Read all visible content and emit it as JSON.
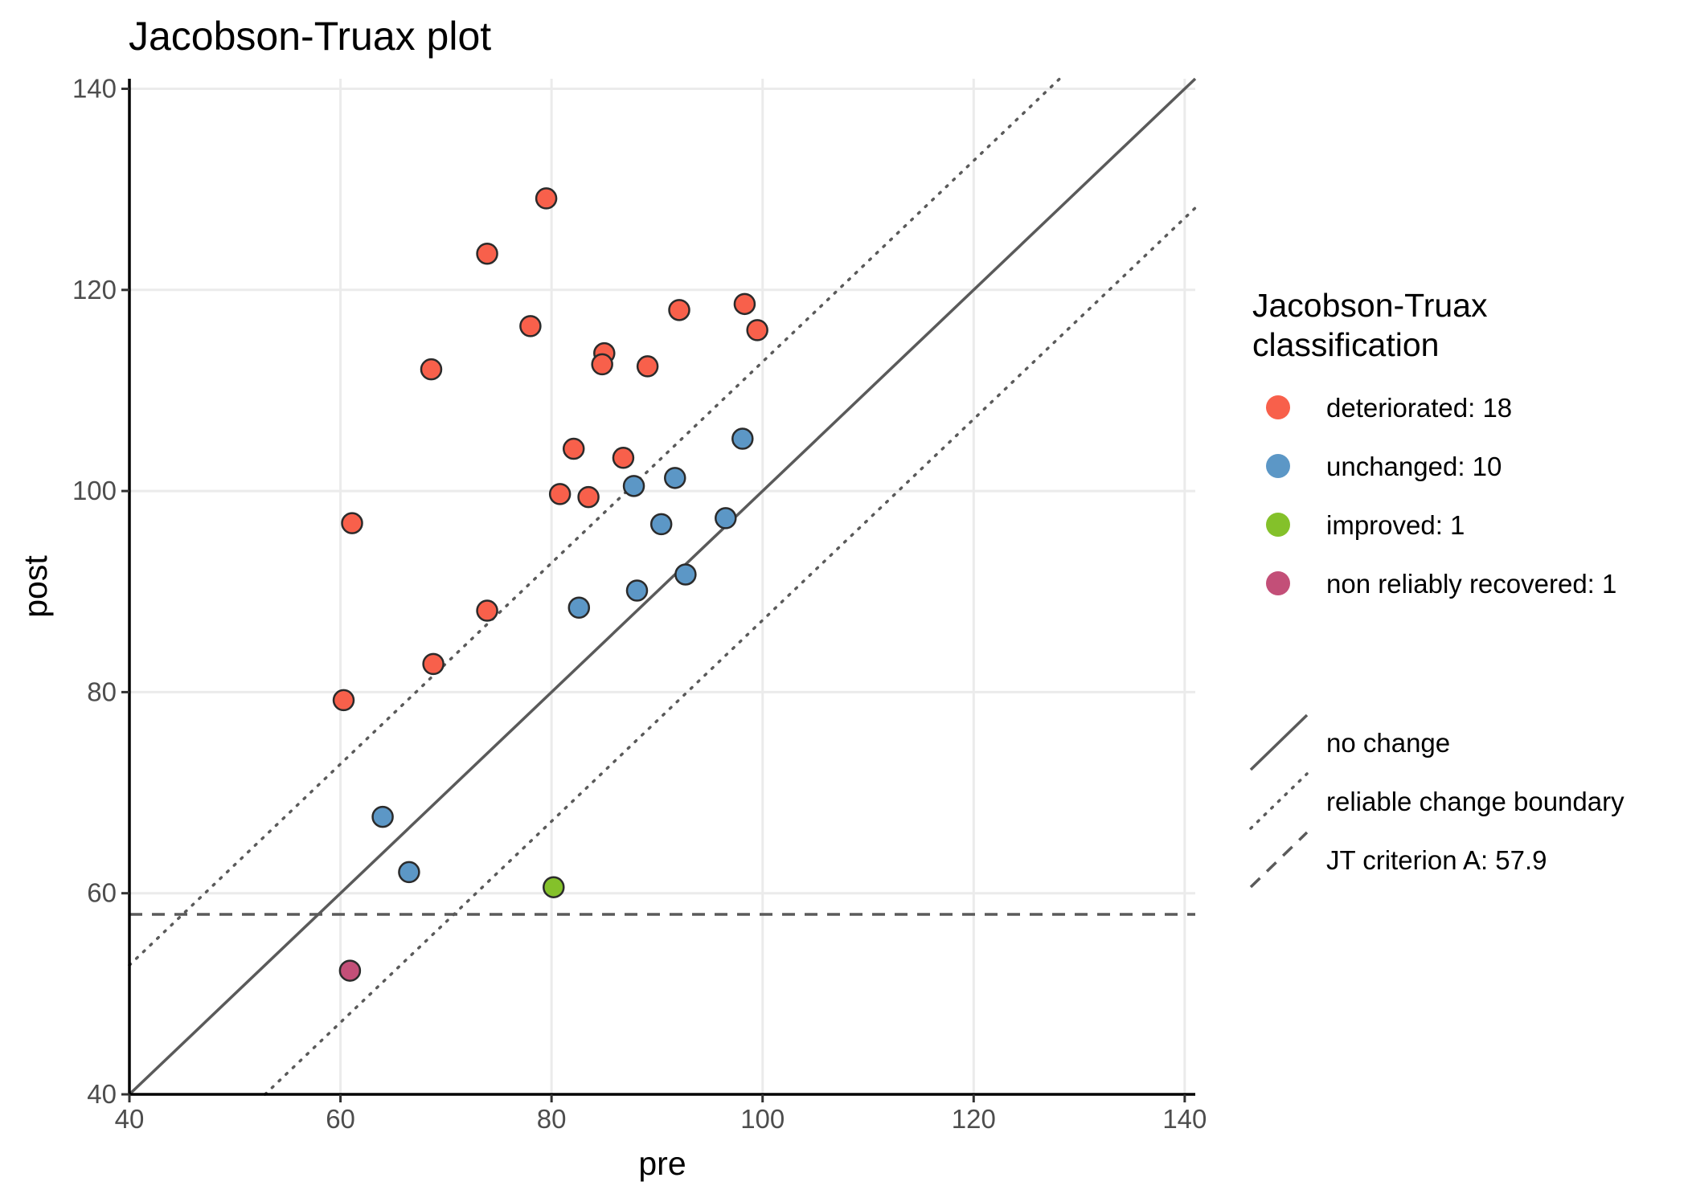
{
  "chart_data": {
    "type": "scatter",
    "title": "Jacobson-Truax plot",
    "xlabel": "pre",
    "ylabel": "post",
    "xlim": [
      40,
      141
    ],
    "ylim": [
      40,
      141
    ],
    "xticks": [
      40,
      60,
      80,
      100,
      120,
      140
    ],
    "yticks": [
      40,
      60,
      80,
      100,
      120,
      140
    ],
    "grid": true,
    "legend_position": "right",
    "legend_title": "Jacobson-Truax\n classification",
    "series": [
      {
        "name": "deteriorated: 18",
        "color": "#f8604b",
        "points": [
          {
            "x": 79.5,
            "y": 129.1
          },
          {
            "x": 73.9,
            "y": 123.6
          },
          {
            "x": 98.3,
            "y": 118.6
          },
          {
            "x": 92.1,
            "y": 118.0
          },
          {
            "x": 78.0,
            "y": 116.4
          },
          {
            "x": 99.5,
            "y": 116.0
          },
          {
            "x": 85.0,
            "y": 113.7
          },
          {
            "x": 84.8,
            "y": 112.6
          },
          {
            "x": 89.1,
            "y": 112.4
          },
          {
            "x": 68.6,
            "y": 112.1
          },
          {
            "x": 82.1,
            "y": 104.2
          },
          {
            "x": 86.8,
            "y": 103.3
          },
          {
            "x": 80.8,
            "y": 99.7
          },
          {
            "x": 83.5,
            "y": 99.4
          },
          {
            "x": 61.1,
            "y": 96.8
          },
          {
            "x": 73.9,
            "y": 88.1
          },
          {
            "x": 68.8,
            "y": 82.8
          },
          {
            "x": 60.3,
            "y": 79.2
          }
        ]
      },
      {
        "name": "unchanged: 10",
        "color": "#5c97c6",
        "points": [
          {
            "x": 98.1,
            "y": 105.2
          },
          {
            "x": 91.7,
            "y": 101.3
          },
          {
            "x": 87.8,
            "y": 100.5
          },
          {
            "x": 96.5,
            "y": 97.3
          },
          {
            "x": 90.4,
            "y": 96.7
          },
          {
            "x": 92.7,
            "y": 91.7
          },
          {
            "x": 88.1,
            "y": 90.1
          },
          {
            "x": 82.6,
            "y": 88.4
          },
          {
            "x": 64.0,
            "y": 67.6
          },
          {
            "x": 66.5,
            "y": 62.1
          }
        ]
      },
      {
        "name": "improved: 1",
        "color": "#84c12a",
        "points": [
          {
            "x": 80.2,
            "y": 60.6
          }
        ]
      },
      {
        "name": "non reliably recovered: 1",
        "color": "#c34f78",
        "points": [
          {
            "x": 60.9,
            "y": 52.3
          }
        ]
      }
    ],
    "reference_lines": [
      {
        "name": "no change",
        "style": "solid",
        "type": "diagonal",
        "intercept": 0
      },
      {
        "name": "reliable change boundary",
        "style": "dotted",
        "type": "diagonal",
        "intercept": 12.85
      },
      {
        "name": "reliable change boundary",
        "style": "dotted",
        "type": "diagonal",
        "intercept": -12.85
      },
      {
        "name": "JT criterion A: 57.9",
        "style": "dashed",
        "type": "horizontal",
        "y": 57.9
      }
    ],
    "line_legend": [
      {
        "label": "no change",
        "style": "solid"
      },
      {
        "label": "reliable change boundary",
        "style": "dotted"
      },
      {
        "label": "JT criterion A: 57.9",
        "style": "dashed"
      }
    ],
    "line_color": "#5a5a5a"
  }
}
